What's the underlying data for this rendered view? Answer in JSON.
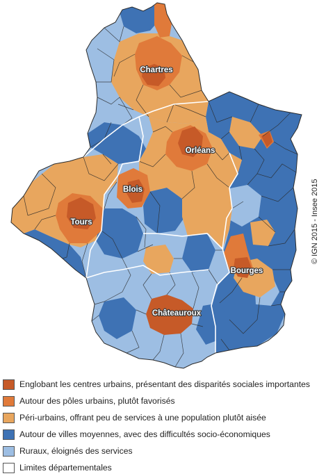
{
  "colors": {
    "dark_red": "#C65A28",
    "orange": "#E07A3A",
    "light_orange": "#E8A65E",
    "dark_blue": "#3E72B4",
    "light_blue": "#9DBEE3",
    "department_border": "#FFFFFF",
    "commune_border": "#2A2A2A"
  },
  "cities": {
    "chartres": "Chartres",
    "orleans": "Orléans",
    "blois": "Blois",
    "tours": "Tours",
    "bourges": "Bourges",
    "chateauroux": "Châteauroux"
  },
  "credit": "© IGN 2015 - Insee 2015",
  "legend": [
    {
      "label": "Englobant les centres urbains, présentant des disparités sociales importantes",
      "color": "#C65A28"
    },
    {
      "label": "Autour des pôles urbains, plutôt favorisés",
      "color": "#E07A3A"
    },
    {
      "label": "Péri-urbains, offrant peu de services à une population plutôt aisée",
      "color": "#E8A65E"
    },
    {
      "label": "Autour de villes moyennes, avec des difficultés socio-économiques",
      "color": "#3E72B4"
    },
    {
      "label": "Ruraux, éloignés des services",
      "color": "#9DBEE3"
    },
    {
      "label": "Limites départementales",
      "color": "#FFFFFF"
    }
  ]
}
